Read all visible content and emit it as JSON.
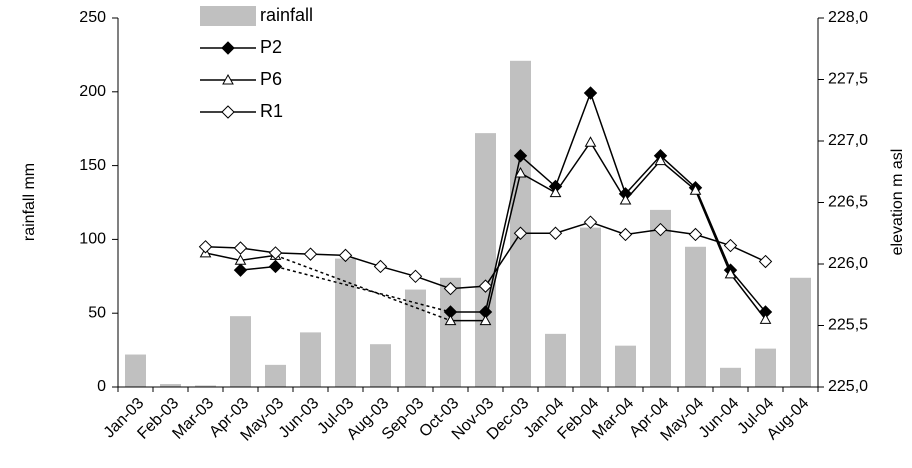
{
  "chart_data": {
    "type": "bar-line",
    "categories": [
      "Jan-03",
      "Feb-03",
      "Mar-03",
      "Apr-03",
      "May-03",
      "Jun-03",
      "Jul-03",
      "Aug-03",
      "Sep-03",
      "Oct-03",
      "Nov-03",
      "Dec-03",
      "Jan-04",
      "Feb-04",
      "Mar-04",
      "Apr-04",
      "May-04",
      "Jun-04",
      "Jul-04",
      "Aug-04"
    ],
    "y_label": "rainfall mm",
    "y2_label": "elevation m asl",
    "ylim": [
      0,
      250
    ],
    "yticks": [
      0,
      50,
      100,
      150,
      200,
      250
    ],
    "y2lim": [
      225,
      228
    ],
    "y2ticks": [
      {
        "value": 225,
        "label": "225,0"
      },
      {
        "value": 225.5,
        "label": "225,5"
      },
      {
        "value": 226,
        "label": "226,0"
      },
      {
        "value": 226.5,
        "label": "226,5"
      },
      {
        "value": 227,
        "label": "227,0"
      },
      {
        "value": 227.5,
        "label": "227,5"
      },
      {
        "value": 228,
        "label": "228,0"
      }
    ],
    "gap_style": "dashed",
    "series": [
      {
        "name": "rainfall",
        "type": "bar",
        "axis": "y",
        "color": "#c0c0c0",
        "values": [
          22,
          2,
          1,
          48,
          15,
          37,
          87,
          29,
          66,
          74,
          172,
          221,
          36,
          108,
          28,
          120,
          95,
          13,
          26,
          74
        ]
      },
      {
        "name": "P2",
        "type": "line",
        "axis": "y2",
        "color": "#000000",
        "marker": "diamond",
        "marker_fill": "#000000",
        "values": [
          null,
          null,
          null,
          225.95,
          225.98,
          null,
          null,
          null,
          null,
          225.61,
          225.61,
          226.88,
          226.63,
          227.39,
          226.57,
          226.88,
          226.62,
          225.95,
          225.61,
          null
        ]
      },
      {
        "name": "P6",
        "type": "line",
        "axis": "y2",
        "color": "#000000",
        "marker": "triangle",
        "marker_fill": "#ffffff",
        "values": [
          null,
          null,
          226.09,
          226.03,
          226.07,
          null,
          null,
          null,
          null,
          225.54,
          225.54,
          226.74,
          226.58,
          226.99,
          226.52,
          226.84,
          226.6,
          225.92,
          225.55,
          null
        ]
      },
      {
        "name": "R1",
        "type": "line",
        "axis": "y2",
        "color": "#000000",
        "marker": "diamond",
        "marker_fill": "#ffffff",
        "values": [
          null,
          null,
          226.14,
          226.13,
          226.09,
          226.08,
          226.07,
          225.98,
          225.9,
          225.8,
          225.82,
          226.25,
          226.25,
          226.34,
          226.24,
          226.28,
          226.24,
          226.15,
          226.02,
          null
        ]
      }
    ]
  }
}
